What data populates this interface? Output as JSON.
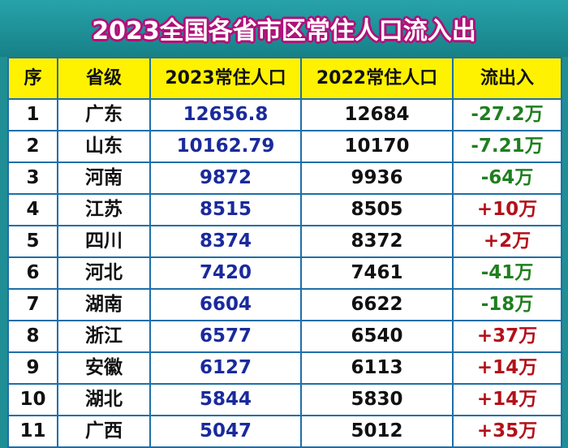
{
  "title": "2023全国各省市区常住人口流入出",
  "headers": [
    "序",
    "省级",
    "2023常住人口",
    "2022常住人口",
    "流出入"
  ],
  "rows": [
    {
      "idx": "1",
      "province": "广东",
      "pop2023": "12656.8",
      "pop2022": "12684",
      "flow": "-27.2万",
      "dir": "neg"
    },
    {
      "idx": "2",
      "province": "山东",
      "pop2023": "10162.79",
      "pop2022": "10170",
      "flow": "-7.21万",
      "dir": "neg"
    },
    {
      "idx": "3",
      "province": "河南",
      "pop2023": "9872",
      "pop2022": "9936",
      "flow": "-64万",
      "dir": "neg"
    },
    {
      "idx": "4",
      "province": "江苏",
      "pop2023": "8515",
      "pop2022": "8505",
      "flow": "+10万",
      "dir": "pos"
    },
    {
      "idx": "5",
      "province": "四川",
      "pop2023": "8374",
      "pop2022": "8372",
      "flow": "+2万",
      "dir": "pos"
    },
    {
      "idx": "6",
      "province": "河北",
      "pop2023": "7420",
      "pop2022": "7461",
      "flow": "-41万",
      "dir": "neg"
    },
    {
      "idx": "7",
      "province": "湖南",
      "pop2023": "6604",
      "pop2022": "6622",
      "flow": "-18万",
      "dir": "neg"
    },
    {
      "idx": "8",
      "province": "浙江",
      "pop2023": "6577",
      "pop2022": "6540",
      "flow": "+37万",
      "dir": "pos"
    },
    {
      "idx": "9",
      "province": "安徽",
      "pop2023": "6127",
      "pop2022": "6113",
      "flow": "+14万",
      "dir": "pos"
    },
    {
      "idx": "10",
      "province": "湖北",
      "pop2023": "5844",
      "pop2022": "5830",
      "flow": "+14万",
      "dir": "pos"
    },
    {
      "idx": "11",
      "province": "广西",
      "pop2023": "5047",
      "pop2022": "5012",
      "flow": "+35万",
      "dir": "pos"
    }
  ],
  "colors": {
    "background": "#1f8e95",
    "header_fill": "#fff200",
    "grid": "#1e6fa8",
    "pop2023_text": "#1a2a9c",
    "outflow_text": "#1f7f1f",
    "inflow_text": "#b3111b",
    "title_outline": "#b0107a"
  }
}
